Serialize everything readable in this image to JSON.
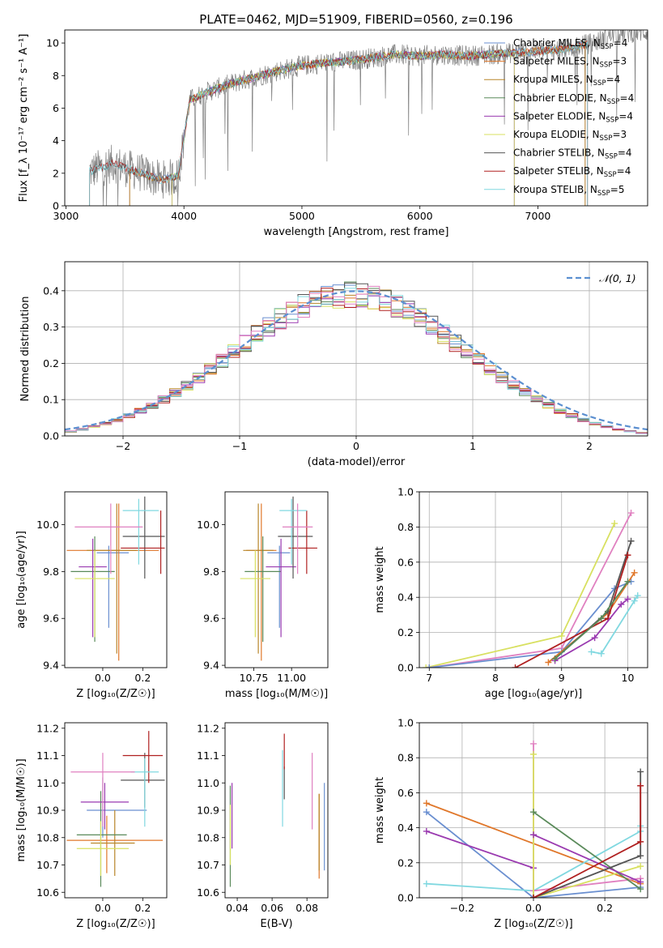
{
  "figure_title": "PLATE=0462, MJD=51909, FIBERID=0560, z=0.196",
  "colors": {
    "Chabrier MILES": "#6a8fd0",
    "Salpeter MILES": "#e0772a",
    "Kroupa MILES": "#b8862a",
    "Chabrier ELODIE": "#5a8a5a",
    "Salpeter ELODIE": "#9a3ab0",
    "Kroupa ELODIE": "#d8e060",
    "Chabrier STELIB": "#555555",
    "Salpeter STELIB": "#b02020",
    "Kroupa STELIB": "#80d8e0",
    "pink": "#e080c0",
    "normal": "#5b8fd0"
  },
  "chart_data": [
    {
      "id": "spectrum",
      "type": "line",
      "title": "PLATE=0462, MJD=51909, FIBERID=0560, z=0.196",
      "xlabel": "wavelength [Angstrom, rest frame]",
      "ylabel": "Flux [f_λ 10⁻¹⁷ erg cm⁻² s⁻¹ A⁻¹]",
      "xlim": [
        2990,
        7930
      ],
      "ylim": [
        0,
        10.8
      ],
      "xticks": [
        3000,
        4000,
        5000,
        6000,
        7000
      ],
      "yticks": [
        0,
        2,
        4,
        6,
        8,
        10
      ],
      "legend_position": "top-right",
      "legend": [
        {
          "label": "Chabrier MILES, N",
          "sub": "SSP",
          "tail": "=4"
        },
        {
          "label": "Salpeter MILES, N",
          "sub": "SSP",
          "tail": "=3"
        },
        {
          "label": "Kroupa MILES, N",
          "sub": "SSP",
          "tail": "=4"
        },
        {
          "label": "Chabrier ELODIE, N",
          "sub": "SSP",
          "tail": "=4"
        },
        {
          "label": "Salpeter ELODIE, N",
          "sub": "SSP",
          "tail": "=4"
        },
        {
          "label": "Kroupa ELODIE, N",
          "sub": "SSP",
          "tail": "=3"
        },
        {
          "label": "Chabrier STELIB, N",
          "sub": "SSP",
          "tail": "=4"
        },
        {
          "label": "Salpeter STELIB, N",
          "sub": "SSP",
          "tail": "=4"
        },
        {
          "label": "Kroupa STELIB, N",
          "sub": "SSP",
          "tail": "=5"
        }
      ],
      "continuum": {
        "wavelength": [
          3200,
          3400,
          3600,
          3800,
          3950,
          4050,
          4200,
          4400,
          4600,
          4800,
          5000,
          5200,
          5400,
          5600,
          5800,
          6000,
          6200,
          6400,
          6600,
          6800,
          7000,
          7200,
          7400,
          7550,
          7650,
          7930
        ],
        "flux": [
          2.1,
          2.6,
          2.1,
          1.6,
          1.8,
          6.5,
          7.0,
          7.5,
          7.9,
          8.3,
          8.6,
          8.8,
          8.9,
          9.1,
          9.3,
          9.2,
          9.3,
          9.2,
          9.3,
          9.4,
          9.5,
          9.6,
          9.9,
          10.2,
          10.6,
          10.7
        ]
      }
    },
    {
      "id": "residuals",
      "type": "line",
      "xlabel": "(data-model)/error",
      "ylabel": "Normed distribution",
      "xlim": [
        -2.5,
        2.5
      ],
      "ylim": [
        0,
        0.48
      ],
      "xticks": [
        -2,
        -1,
        0,
        1,
        2
      ],
      "yticks": [
        0.0,
        0.1,
        0.2,
        0.3,
        0.4
      ],
      "grid": true,
      "legend_position": "top-right",
      "legend": "𝒩(0, 1)",
      "normal_curve": {
        "mean": 0,
        "sigma": 1
      }
    },
    {
      "id": "age_vs_Z",
      "type": "scatter",
      "xlabel": "Z [log₁₀(Z/Z☉)]",
      "ylabel": "age  [log₁₀(age/yr)]",
      "xlim": [
        -0.19,
        0.32
      ],
      "ylim": [
        9.39,
        10.14
      ],
      "xticks": [
        0.0,
        0.2
      ],
      "yticks": [
        9.4,
        9.6,
        9.8,
        10.0
      ],
      "points": [
        {
          "model": "Chabrier MILES",
          "x": 0.03,
          "xerr": [
            0.06,
            0.1
          ],
          "y": 9.88,
          "yerr": [
            0.32,
            0.03
          ]
        },
        {
          "model": "Salpeter MILES",
          "x": 0.08,
          "xerr": [
            0.26,
            0.2
          ],
          "y": 9.89,
          "yerr": [
            0.47,
            0.2
          ]
        },
        {
          "model": "Kroupa MILES",
          "x": 0.07,
          "xerr": [
            0.15,
            0.1
          ],
          "y": 9.89,
          "yerr": [
            0.44,
            0.2
          ]
        },
        {
          "model": "Chabrier ELODIE",
          "x": -0.04,
          "xerr": [
            0.12,
            0.1
          ],
          "y": 9.8,
          "yerr": [
            0.3,
            0.15
          ]
        },
        {
          "model": "Salpeter ELODIE",
          "x": -0.05,
          "xerr": [
            0.07,
            0.07
          ],
          "y": 9.82,
          "yerr": [
            0.3,
            0.12
          ]
        },
        {
          "model": "Kroupa ELODIE",
          "x": -0.04,
          "xerr": [
            0.1,
            0.1
          ],
          "y": 9.77,
          "yerr": [
            0.25,
            0.12
          ]
        },
        {
          "model": "Chabrier STELIB",
          "x": 0.21,
          "xerr": [
            0.11,
            0.1
          ],
          "y": 9.95,
          "yerr": [
            0.18,
            0.17
          ]
        },
        {
          "model": "Salpeter STELIB",
          "x": 0.29,
          "xerr": [
            0.2,
            0.02
          ],
          "y": 9.9,
          "yerr": [
            0.11,
            0.16
          ]
        },
        {
          "model": "Kroupa STELIB",
          "x": 0.18,
          "xerr": [
            0.08,
            0.1
          ],
          "y": 10.06,
          "yerr": [
            0.23,
            0.05
          ]
        },
        {
          "model": "pink",
          "x": 0.04,
          "xerr": [
            0.18,
            0.16
          ],
          "y": 9.99,
          "yerr": [
            0.2,
            0.1
          ]
        }
      ]
    },
    {
      "id": "age_vs_mass",
      "type": "scatter",
      "xlabel": "mass [log₁₀(M/M☉)]",
      "ylabel": "",
      "xlim": [
        10.56,
        11.24
      ],
      "ylim": [
        9.39,
        10.14
      ],
      "xticks": [
        10.75,
        11.0
      ],
      "yticks": [
        9.4,
        9.6,
        9.8,
        10.0
      ],
      "points": [
        {
          "model": "Chabrier MILES",
          "x": 10.92,
          "xerr": [
            0.08,
            0.07
          ],
          "y": 9.88,
          "yerr": [
            0.32,
            0.03
          ]
        },
        {
          "model": "Salpeter MILES",
          "x": 10.8,
          "xerr": [
            0.1,
            0.1
          ],
          "y": 9.89,
          "yerr": [
            0.47,
            0.2
          ]
        },
        {
          "model": "Kroupa MILES",
          "x": 10.78,
          "xerr": [
            0.1,
            0.1
          ],
          "y": 9.89,
          "yerr": [
            0.44,
            0.2
          ]
        },
        {
          "model": "Chabrier ELODIE",
          "x": 10.81,
          "xerr": [
            0.12,
            0.12
          ],
          "y": 9.8,
          "yerr": [
            0.3,
            0.15
          ]
        },
        {
          "model": "Salpeter ELODIE",
          "x": 10.93,
          "xerr": [
            0.1,
            0.1
          ],
          "y": 9.82,
          "yerr": [
            0.3,
            0.12
          ]
        },
        {
          "model": "Kroupa ELODIE",
          "x": 10.76,
          "xerr": [
            0.1,
            0.1
          ],
          "y": 9.77,
          "yerr": [
            0.25,
            0.12
          ]
        },
        {
          "model": "Chabrier STELIB",
          "x": 11.01,
          "xerr": [
            0.1,
            0.13
          ],
          "y": 9.95,
          "yerr": [
            0.18,
            0.17
          ]
        },
        {
          "model": "Salpeter STELIB",
          "x": 11.1,
          "xerr": [
            0.12,
            0.07
          ],
          "y": 9.9,
          "yerr": [
            0.11,
            0.16
          ]
        },
        {
          "model": "Kroupa STELIB",
          "x": 11.0,
          "xerr": [
            0.08,
            0.1
          ],
          "y": 10.06,
          "yerr": [
            0.23,
            0.05
          ]
        },
        {
          "model": "pink",
          "x": 11.04,
          "xerr": [
            0.1,
            0.1
          ],
          "y": 9.99,
          "yerr": [
            0.2,
            0.1
          ]
        }
      ]
    },
    {
      "id": "weight_vs_age",
      "type": "line",
      "xlabel": "age  [log₁₀(age/yr)]",
      "ylabel": "mass weight",
      "xlim": [
        6.85,
        10.3
      ],
      "ylim": [
        0,
        1.0
      ],
      "xticks": [
        7,
        8,
        9,
        10
      ],
      "yticks": [
        0.0,
        0.2,
        0.4,
        0.6,
        0.8,
        1.0
      ],
      "grid": true,
      "series": [
        {
          "model": "Kroupa ELODIE",
          "x": [
            6.95,
            9.0,
            9.8
          ],
          "y": [
            0.0,
            0.18,
            0.82
          ]
        },
        {
          "model": "pink",
          "x": [
            7.0,
            9.0,
            10.05
          ],
          "y": [
            0.0,
            0.11,
            0.88
          ]
        },
        {
          "model": "Chabrier MILES",
          "x": [
            7.0,
            9.0,
            9.8,
            10.05
          ],
          "y": [
            0.0,
            0.09,
            0.45,
            0.49
          ]
        },
        {
          "model": "Salpeter MILES",
          "x": [
            8.8,
            9.7,
            10.1
          ],
          "y": [
            0.03,
            0.31,
            0.54
          ]
        },
        {
          "model": "Chabrier STELIB",
          "x": [
            8.9,
            9.7,
            10.05
          ],
          "y": [
            0.05,
            0.32,
            0.72
          ]
        },
        {
          "model": "Salpeter STELIB",
          "x": [
            8.3,
            9.7,
            10.0
          ],
          "y": [
            0.0,
            0.28,
            0.64
          ]
        },
        {
          "model": "Salpeter ELODIE",
          "x": [
            8.9,
            9.5,
            9.9,
            10.0
          ],
          "y": [
            0.04,
            0.17,
            0.36,
            0.39
          ]
        },
        {
          "model": "Chabrier ELODIE",
          "x": [
            8.9,
            9.6,
            10.0
          ],
          "y": [
            0.05,
            0.28,
            0.49
          ]
        },
        {
          "model": "Kroupa STELIB",
          "x": [
            9.45,
            9.6,
            10.1,
            10.15
          ],
          "y": [
            0.09,
            0.08,
            0.38,
            0.41
          ]
        }
      ]
    },
    {
      "id": "mass_vs_Z",
      "type": "scatter",
      "xlabel": "Z [log₁₀(Z/Z☉)]",
      "ylabel": "mass [log₁₀(M/M☉)]",
      "xlim": [
        -0.19,
        0.32
      ],
      "ylim": [
        10.58,
        11.22
      ],
      "xticks": [
        0.0,
        0.2
      ],
      "yticks": [
        10.6,
        10.7,
        10.8,
        10.9,
        11.0,
        11.1,
        11.2
      ],
      "points": [
        {
          "model": "Chabrier MILES",
          "x": 0.0,
          "xerr": [
            0.08,
            0.22
          ],
          "y": 10.9,
          "yerr": [
            0.1,
            0.12
          ]
        },
        {
          "model": "Salpeter MILES",
          "x": 0.02,
          "xerr": [
            0.2,
            0.28
          ],
          "y": 10.79,
          "yerr": [
            0.12,
            0.09
          ]
        },
        {
          "model": "Kroupa MILES",
          "x": 0.06,
          "xerr": [
            0.12,
            0.1
          ],
          "y": 10.78,
          "yerr": [
            0.12,
            0.12
          ]
        },
        {
          "model": "Chabrier ELODIE",
          "x": -0.01,
          "xerr": [
            0.12,
            0.13
          ],
          "y": 10.81,
          "yerr": [
            0.19,
            0.16
          ]
        },
        {
          "model": "Salpeter ELODIE",
          "x": 0.01,
          "xerr": [
            0.12,
            0.12
          ],
          "y": 10.93,
          "yerr": [
            0.1,
            0.07
          ]
        },
        {
          "model": "Kroupa ELODIE",
          "x": -0.01,
          "xerr": [
            0.12,
            0.14
          ],
          "y": 10.76,
          "yerr": [
            0.1,
            0.1
          ]
        },
        {
          "model": "Chabrier STELIB",
          "x": 0.21,
          "xerr": [
            0.12,
            0.1
          ],
          "y": 11.01,
          "yerr": [
            0.1,
            0.1
          ]
        },
        {
          "model": "Salpeter STELIB",
          "x": 0.23,
          "xerr": [
            0.13,
            0.07
          ],
          "y": 11.1,
          "yerr": [
            0.1,
            0.09
          ]
        },
        {
          "model": "Kroupa STELIB",
          "x": 0.21,
          "xerr": [
            0.07,
            0.07
          ],
          "y": 11.04,
          "yerr": [
            0.2,
            0.05
          ]
        },
        {
          "model": "pink",
          "x": 0.0,
          "xerr": [
            0.16,
            0.16
          ],
          "y": 11.04,
          "yerr": [
            0.2,
            0.07
          ]
        }
      ]
    },
    {
      "id": "mass_vs_EBV",
      "type": "scatter",
      "xlabel": "E(B-V)",
      "ylabel": "",
      "xlim": [
        0.033,
        0.092
      ],
      "ylim": [
        10.58,
        11.22
      ],
      "xticks": [
        0.04,
        0.06,
        0.08
      ],
      "yticks": [
        10.6,
        10.7,
        10.8,
        10.9,
        11.0,
        11.1,
        11.2
      ],
      "points": [
        {
          "model": "Chabrier MILES",
          "x": 0.09,
          "y": 10.84,
          "yerr": [
            0.16,
            0.16
          ]
        },
        {
          "model": "Salpeter MILES",
          "x": 0.087,
          "y": 10.78,
          "yerr": [
            0.13,
            0.18
          ]
        },
        {
          "model": "Kroupa MILES",
          "x": 0.087,
          "y": 10.8,
          "yerr": [
            0.12,
            0.16
          ]
        },
        {
          "model": "Chabrier ELODIE",
          "x": 0.036,
          "y": 10.81,
          "yerr": [
            0.19,
            0.18
          ]
        },
        {
          "model": "Salpeter ELODIE",
          "x": 0.037,
          "y": 10.93,
          "yerr": [
            0.17,
            0.07
          ]
        },
        {
          "model": "Kroupa ELODIE",
          "x": 0.036,
          "y": 10.8,
          "yerr": [
            0.1,
            0.12
          ]
        },
        {
          "model": "Chabrier STELIB",
          "x": 0.067,
          "y": 11.01,
          "yerr": [
            0.07,
            0.05
          ]
        },
        {
          "model": "Salpeter STELIB",
          "x": 0.067,
          "y": 11.1,
          "yerr": [
            0.05,
            0.08
          ]
        },
        {
          "model": "Kroupa STELIB",
          "x": 0.066,
          "y": 11.0,
          "yerr": [
            0.16,
            0.12
          ]
        },
        {
          "model": "pink",
          "x": 0.083,
          "y": 10.97,
          "yerr": [
            0.14,
            0.14
          ]
        }
      ]
    },
    {
      "id": "weight_vs_Z",
      "type": "line",
      "xlabel": "Z [log₁₀(Z/Z☉)]",
      "ylabel": "mass weight",
      "xlim": [
        -0.32,
        0.32
      ],
      "ylim": [
        0,
        1.0
      ],
      "xticks": [
        -0.2,
        0.0,
        0.2
      ],
      "yticks": [
        0.0,
        0.2,
        0.4,
        0.6,
        0.8,
        1.0
      ],
      "grid": true,
      "series": [
        {
          "model": "Salpeter MILES",
          "x": [
            -0.3,
            0.3
          ],
          "y": [
            0.54,
            0.08
          ]
        },
        {
          "model": "Chabrier MILES",
          "x": [
            -0.3,
            0.0,
            0.3
          ],
          "y": [
            0.49,
            0.0,
            0.06
          ]
        },
        {
          "model": "Salpeter ELODIE",
          "x": [
            -0.3,
            0.0,
            0.0
          ],
          "y": [
            0.38,
            0.17,
            0.0
          ]
        },
        {
          "model": "Kroupa STELIB",
          "x": [
            -0.3,
            0.0,
            0.3,
            0.3
          ],
          "y": [
            0.08,
            0.04,
            0.38,
            0.41
          ]
        },
        {
          "model": "pink",
          "x": [
            0.0,
            0.0,
            0.3
          ],
          "y": [
            0.88,
            0.04,
            0.11
          ]
        },
        {
          "model": "Kroupa ELODIE",
          "x": [
            0.0,
            0.0,
            0.3
          ],
          "y": [
            0.82,
            0.0,
            0.18
          ]
        },
        {
          "model": "Chabrier ELODIE",
          "x": [
            0.0,
            0.3
          ],
          "y": [
            0.49,
            0.05
          ]
        },
        {
          "model": "Salpeter ELODIE",
          "x": [
            0.0,
            0.3
          ],
          "y": [
            0.36,
            0.09
          ]
        },
        {
          "model": "Chabrier STELIB",
          "x": [
            0.0,
            0.3,
            0.3
          ],
          "y": [
            0.0,
            0.24,
            0.72
          ]
        },
        {
          "model": "Salpeter STELIB",
          "x": [
            0.0,
            0.3,
            0.3
          ],
          "y": [
            0.0,
            0.32,
            0.64
          ]
        }
      ]
    }
  ]
}
